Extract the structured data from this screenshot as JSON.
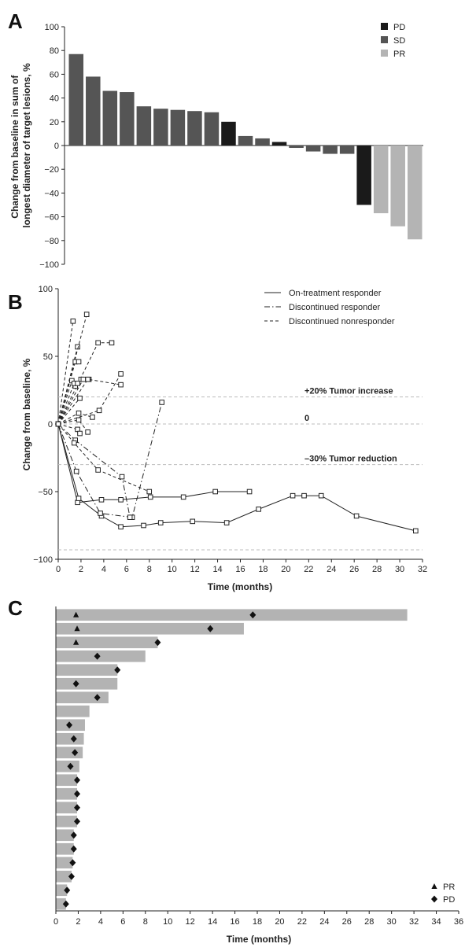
{
  "chart_data": [
    {
      "type": "bar",
      "panel": "A",
      "ylabel": "Change from baseline in sum of longest diameter of target lesions, %",
      "ylim": [
        -100,
        100
      ],
      "yticks": [
        100,
        80,
        60,
        40,
        20,
        0,
        -20,
        -40,
        -60,
        -80,
        -100
      ],
      "legend": [
        {
          "label": "PD",
          "color": "#1a1a1a"
        },
        {
          "label": "SD",
          "color": "#555555"
        },
        {
          "label": "PR",
          "color": "#b4b4b4"
        }
      ],
      "values": [
        77,
        58,
        46,
        45,
        33,
        31,
        30,
        29,
        28,
        20,
        8,
        6,
        3,
        -2,
        -5,
        -7,
        -7,
        -50,
        -57,
        -68,
        -79
      ],
      "response": [
        "SD",
        "SD",
        "SD",
        "SD",
        "SD",
        "SD",
        "SD",
        "SD",
        "SD",
        "PD",
        "SD",
        "SD",
        "PD",
        "SD",
        "SD",
        "SD",
        "SD",
        "PD",
        "PR",
        "PR",
        "PR"
      ]
    },
    {
      "type": "line",
      "panel": "B",
      "xlabel": "Time (months)",
      "ylabel": "Change from baseline, %",
      "xlim": [
        0,
        32
      ],
      "ylim": [
        -100,
        100
      ],
      "xticks": [
        0,
        2,
        4,
        6,
        8,
        10,
        12,
        14,
        16,
        18,
        20,
        22,
        24,
        26,
        28,
        30,
        32
      ],
      "yticks": [
        100,
        50,
        0,
        -50,
        -100
      ],
      "legend": [
        {
          "label": "On-treatment responder",
          "style": "solid"
        },
        {
          "label": "Discontinued responder",
          "style": "dashdot"
        },
        {
          "label": "Discontinued nonresponder",
          "style": "dashed"
        }
      ],
      "reference_lines": [
        {
          "y": 20,
          "label": "+20% Tumor increase"
        },
        {
          "y": 0,
          "label": "0"
        },
        {
          "y": -30,
          "label": "–30% Tumor reduction"
        },
        {
          "y": -93,
          "label": ""
        }
      ],
      "series": [
        {
          "style": "solid",
          "x": [
            0,
            1.7,
            3.8,
            5.5,
            8.1,
            11,
            13.8,
            16.8
          ],
          "y": [
            0,
            -58,
            -56,
            -56,
            -54,
            -54,
            -50,
            -50
          ]
        },
        {
          "style": "solid",
          "x": [
            0,
            1.8,
            3.8,
            5.5,
            7.5,
            9,
            11.8,
            14.8,
            17.6,
            20.6,
            21.6,
            23.1,
            26.2,
            31.4
          ],
          "y": [
            0,
            -55,
            -68,
            -76,
            -75,
            -73,
            -72,
            -73,
            -63,
            -53,
            -53,
            -53,
            -68,
            -79
          ]
        },
        {
          "style": "dashdot",
          "x": [
            0,
            1.6,
            3.7,
            6.5,
            9.1
          ],
          "y": [
            0,
            -35,
            -66,
            -69,
            16
          ]
        },
        {
          "style": "dashdot",
          "x": [
            0,
            1.5,
            5.6,
            6.3
          ],
          "y": [
            0,
            -12,
            -39,
            -69
          ]
        },
        {
          "style": "dashed",
          "x": [
            0,
            1.3
          ],
          "y": [
            0,
            76
          ]
        },
        {
          "style": "dashed",
          "x": [
            0,
            1.7
          ],
          "y": [
            0,
            57
          ]
        },
        {
          "style": "dashed",
          "x": [
            0,
            2.5
          ],
          "y": [
            0,
            81
          ]
        },
        {
          "style": "dashed",
          "x": [
            0,
            3.5,
            4.7
          ],
          "y": [
            0,
            60,
            60
          ]
        },
        {
          "style": "dashed",
          "x": [
            0,
            1.5,
            1.8
          ],
          "y": [
            0,
            46,
            46
          ]
        },
        {
          "style": "dashed",
          "x": [
            0,
            1.2,
            1.5,
            2.0
          ],
          "y": [
            0,
            32,
            28,
            33
          ]
        },
        {
          "style": "dashed",
          "x": [
            0,
            1.4,
            1.7
          ],
          "y": [
            0,
            30,
            30
          ]
        },
        {
          "style": "dashed",
          "x": [
            0,
            2.2,
            2.7
          ],
          "y": [
            0,
            33,
            33
          ]
        },
        {
          "style": "dashed",
          "x": [
            0,
            2.6,
            5.5
          ],
          "y": [
            0,
            33,
            29
          ]
        },
        {
          "style": "dashed",
          "x": [
            0,
            3.6,
            5.5
          ],
          "y": [
            0,
            10,
            37
          ]
        },
        {
          "style": "dashed",
          "x": [
            0,
            1.9
          ],
          "y": [
            0,
            19
          ]
        },
        {
          "style": "dashed",
          "x": [
            0,
            1.8,
            3.0
          ],
          "y": [
            0,
            8,
            5
          ]
        },
        {
          "style": "dashed",
          "x": [
            0,
            1.8,
            2.6
          ],
          "y": [
            0,
            3,
            -6
          ]
        },
        {
          "style": "dashed",
          "x": [
            0,
            1.7,
            1.9
          ],
          "y": [
            0,
            -4,
            -7
          ]
        },
        {
          "style": "dashed",
          "x": [
            0,
            1.4,
            3.5,
            8.0
          ],
          "y": [
            0,
            -14,
            -34,
            -50
          ]
        }
      ]
    },
    {
      "type": "bar",
      "panel": "C",
      "orientation": "horizontal",
      "xlabel": "Time (months)",
      "xlim": [
        0,
        36
      ],
      "xticks": [
        0,
        2,
        4,
        6,
        8,
        10,
        12,
        14,
        16,
        18,
        20,
        22,
        24,
        26,
        28,
        30,
        32,
        34,
        36
      ],
      "legend": [
        {
          "label": "PR",
          "marker": "triangle"
        },
        {
          "label": "PD",
          "marker": "diamond"
        }
      ],
      "durations": [
        31.4,
        16.8,
        9.1,
        8.0,
        5.5,
        5.5,
        4.7,
        3.0,
        2.6,
        2.5,
        2.4,
        2.1,
        1.9,
        1.9,
        1.9,
        1.9,
        1.6,
        1.6,
        1.5,
        1.4,
        1.0,
        0.9
      ],
      "pr_times": [
        1.8,
        1.9,
        1.8,
        null,
        null,
        null,
        null,
        null,
        null,
        null,
        null,
        null,
        null,
        null,
        null,
        null,
        null,
        null,
        null,
        null,
        null,
        null
      ],
      "pd_times": [
        17.6,
        13.8,
        9.1,
        3.7,
        5.5,
        1.8,
        3.7,
        null,
        1.2,
        1.6,
        1.7,
        1.3,
        1.9,
        1.9,
        1.9,
        1.9,
        1.6,
        1.6,
        1.5,
        1.4,
        1.0,
        0.9
      ]
    }
  ]
}
